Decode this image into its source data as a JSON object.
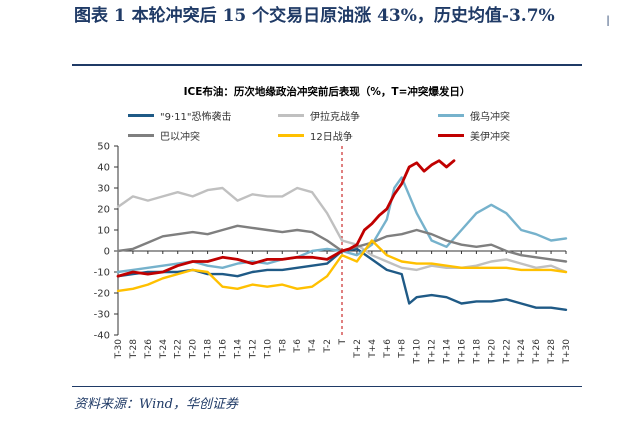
{
  "figure": {
    "title": "图表 1 本轮冲突后 15 个交易日原油涨 43%，历史均值-3.7%",
    "edge_text": "I"
  },
  "source": "资料来源：Wind，华创证券",
  "chart_data": {
    "type": "line",
    "title": "ICE布油：历次地缘政治冲突前后表现（%，T=冲突爆发日）",
    "ylim": [
      -40,
      50
    ],
    "yticks": [
      -40,
      -30,
      -20,
      -10,
      0,
      10,
      20,
      30,
      40,
      50
    ],
    "xlim": [
      -30,
      30
    ],
    "x_tick_values": [
      -30,
      -28,
      -26,
      -24,
      -22,
      -20,
      -18,
      -16,
      -14,
      -12,
      -10,
      -8,
      -6,
      -4,
      -2,
      0,
      2,
      4,
      6,
      8,
      10,
      12,
      14,
      16,
      18,
      20,
      22,
      24,
      26,
      28,
      30
    ],
    "x_tick_labels": [
      "T-30",
      "T-28",
      "T-26",
      "T-24",
      "T-22",
      "T-20",
      "T-18",
      "T-16",
      "T-14",
      "T-12",
      "T-10",
      "T-8",
      "T-6",
      "T-4",
      "T-2",
      "T",
      "T+2",
      "T+4",
      "T+6",
      "T+8",
      "T+10",
      "T+12",
      "T+14",
      "T+16",
      "T+18",
      "T+20",
      "T+22",
      "T+24",
      "T+26",
      "T+28",
      "T+30"
    ],
    "event_line_x": 0,
    "grid": false,
    "legend_position": "top",
    "series": [
      {
        "name": "\"9·11\"恐怖袭击",
        "color": "#1f5a86",
        "width": 2.4,
        "x": [
          -30,
          -28,
          -26,
          -24,
          -22,
          -20,
          -18,
          -16,
          -14,
          -12,
          -10,
          -8,
          -6,
          -4,
          -2,
          0,
          2,
          4,
          6,
          8,
          9,
          10,
          12,
          14,
          16,
          18,
          20,
          22,
          24,
          26,
          28,
          30
        ],
        "y": [
          -12,
          -11,
          -10,
          -10,
          -10,
          -9,
          -11,
          -11,
          -12,
          -10,
          -9,
          -9,
          -8,
          -7,
          -6,
          0,
          1,
          -4,
          -9,
          -11,
          -25,
          -22,
          -21,
          -22,
          -25,
          -24,
          -24,
          -23,
          -25,
          -27,
          -27,
          -28
        ]
      },
      {
        "name": "伊拉克战争",
        "color": "#c0c0c0",
        "width": 2.4,
        "x": [
          -30,
          -28,
          -26,
          -24,
          -22,
          -20,
          -18,
          -16,
          -14,
          -12,
          -10,
          -8,
          -6,
          -4,
          -2,
          0,
          2,
          4,
          6,
          8,
          10,
          12,
          14,
          16,
          18,
          20,
          22,
          24,
          26,
          28,
          30
        ],
        "y": [
          21,
          26,
          24,
          26,
          28,
          26,
          29,
          30,
          24,
          27,
          26,
          26,
          30,
          28,
          18,
          5,
          3,
          -2,
          -5,
          -8,
          -9,
          -7,
          -8,
          -8,
          -7,
          -5,
          -4,
          -6,
          -8,
          -7,
          -10
        ]
      },
      {
        "name": "俄乌冲突",
        "color": "#76b2cc",
        "width": 2.4,
        "x": [
          -30,
          -28,
          -26,
          -24,
          -22,
          -20,
          -18,
          -16,
          -14,
          -12,
          -10,
          -8,
          -6,
          -4,
          -2,
          0,
          2,
          4,
          6,
          7,
          8,
          10,
          12,
          14,
          16,
          18,
          20,
          22,
          24,
          26,
          28,
          30
        ],
        "y": [
          -10,
          -9,
          -8,
          -7,
          -6,
          -5,
          -7,
          -8,
          -6,
          -5,
          -6,
          -4,
          -3,
          0,
          1,
          0,
          -2,
          3,
          15,
          30,
          35,
          18,
          5,
          2,
          10,
          18,
          22,
          18,
          10,
          8,
          5,
          6
        ]
      },
      {
        "name": "巴以冲突",
        "color": "#7f7f7f",
        "width": 2.4,
        "x": [
          -30,
          -28,
          -26,
          -24,
          -22,
          -20,
          -18,
          -16,
          -14,
          -12,
          -10,
          -8,
          -6,
          -4,
          -2,
          0,
          2,
          4,
          6,
          8,
          10,
          12,
          14,
          16,
          18,
          20,
          22,
          24,
          26,
          28,
          30
        ],
        "y": [
          0,
          1,
          4,
          7,
          8,
          9,
          8,
          10,
          12,
          11,
          10,
          9,
          10,
          9,
          5,
          0,
          2,
          4,
          7,
          8,
          10,
          8,
          5,
          3,
          2,
          3,
          0,
          -2,
          -3,
          -4,
          -5
        ]
      },
      {
        "name": "12日战争",
        "color": "#ffc000",
        "width": 2.4,
        "x": [
          -30,
          -28,
          -26,
          -24,
          -22,
          -20,
          -18,
          -16,
          -14,
          -12,
          -10,
          -8,
          -6,
          -4,
          -2,
          0,
          2,
          4,
          6,
          8,
          10,
          12,
          14,
          16,
          18,
          20,
          22,
          24,
          26,
          28,
          30
        ],
        "y": [
          -19,
          -18,
          -16,
          -13,
          -11,
          -9,
          -10,
          -17,
          -18,
          -16,
          -17,
          -16,
          -18,
          -17,
          -12,
          -2,
          -5,
          5,
          -2,
          -5,
          -6,
          -6,
          -7,
          -8,
          -8,
          -8,
          -8,
          -9,
          -9,
          -9,
          -10
        ]
      },
      {
        "name": "美伊冲突",
        "color": "#c00000",
        "width": 2.8,
        "x": [
          -30,
          -28,
          -26,
          -24,
          -22,
          -20,
          -18,
          -16,
          -14,
          -12,
          -10,
          -8,
          -6,
          -4,
          -2,
          0,
          1,
          2,
          3,
          4,
          5,
          6,
          7,
          8,
          9,
          10,
          11,
          12,
          13,
          14,
          15
        ],
        "y": [
          -12,
          -10,
          -11,
          -10,
          -7,
          -5,
          -5,
          -3,
          -4,
          -6,
          -4,
          -4,
          -3,
          -3,
          -4,
          0,
          1,
          3,
          10,
          13,
          17,
          20,
          27,
          32,
          40,
          42,
          38,
          41,
          43,
          40,
          43
        ]
      }
    ]
  }
}
